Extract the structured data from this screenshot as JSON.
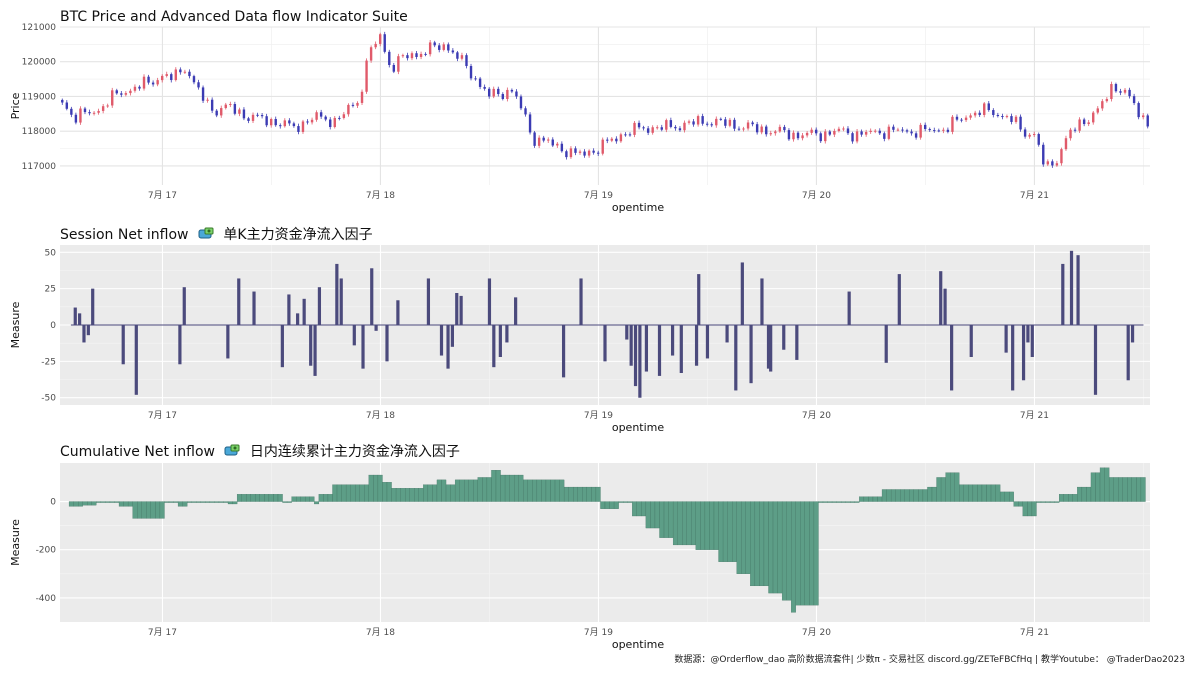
{
  "chart_data": [
    {
      "id": "price",
      "type": "candlestick",
      "title": "BTC Price and Advanced Data flow Indicator Suite",
      "xlabel": "opentime",
      "ylabel": "Price",
      "x_ticks": [
        "7月 17",
        "7月 18",
        "7月 19",
        "7月 20",
        "7月 21"
      ],
      "x_tick_days": [
        1,
        2,
        3,
        4,
        5
      ],
      "xlim_days": [
        0.53,
        5.53
      ],
      "y_ticks": [
        117000,
        118000,
        119000,
        120000,
        121000
      ],
      "ylim": [
        116450,
        121000
      ],
      "grid": true,
      "up_color": "#e05a6a",
      "down_color": "#3b3bb3",
      "path_anchors_day_price": [
        [
          0.53,
          118900
        ],
        [
          0.6,
          118400
        ],
        [
          0.7,
          118600
        ],
        [
          0.8,
          119100
        ],
        [
          0.9,
          119300
        ],
        [
          1.0,
          119600
        ],
        [
          1.05,
          119500
        ],
        [
          1.1,
          119900
        ],
        [
          1.15,
          119300
        ],
        [
          1.2,
          118800
        ],
        [
          1.25,
          118600
        ],
        [
          1.3,
          118700
        ],
        [
          1.4,
          118400
        ],
        [
          1.5,
          118300
        ],
        [
          1.6,
          118100
        ],
        [
          1.7,
          118400
        ],
        [
          1.8,
          118300
        ],
        [
          1.9,
          118900
        ],
        [
          1.95,
          120300
        ],
        [
          2.0,
          120700
        ],
        [
          2.05,
          119800
        ],
        [
          2.1,
          120100
        ],
        [
          2.2,
          120300
        ],
        [
          2.3,
          120500
        ],
        [
          2.4,
          119800
        ],
        [
          2.5,
          119000
        ],
        [
          2.6,
          119200
        ],
        [
          2.65,
          118600
        ],
        [
          2.7,
          117800
        ],
        [
          2.8,
          117600
        ],
        [
          2.9,
          117300
        ],
        [
          3.0,
          117500
        ],
        [
          3.05,
          117700
        ],
        [
          3.1,
          117900
        ],
        [
          3.2,
          118100
        ],
        [
          3.3,
          118100
        ],
        [
          3.4,
          118200
        ],
        [
          3.5,
          118300
        ],
        [
          3.6,
          118200
        ],
        [
          3.7,
          118100
        ],
        [
          3.8,
          118000
        ],
        [
          3.9,
          117900
        ],
        [
          4.0,
          117900
        ],
        [
          4.1,
          118000
        ],
        [
          4.2,
          117900
        ],
        [
          4.3,
          118000
        ],
        [
          4.4,
          118000
        ],
        [
          4.5,
          118000
        ],
        [
          4.6,
          118100
        ],
        [
          4.7,
          118500
        ],
        [
          4.8,
          118600
        ],
        [
          4.9,
          118300
        ],
        [
          4.95,
          118000
        ],
        [
          5.0,
          117900
        ],
        [
          5.05,
          116900
        ],
        [
          5.1,
          117200
        ],
        [
          5.15,
          117800
        ],
        [
          5.2,
          118200
        ],
        [
          5.3,
          118600
        ],
        [
          5.35,
          119300
        ],
        [
          5.4,
          119200
        ],
        [
          5.45,
          118800
        ],
        [
          5.5,
          118400
        ],
        [
          5.53,
          118100
        ]
      ],
      "candle_count": 240
    },
    {
      "id": "session",
      "type": "bar",
      "title": "Session Net inflow",
      "title_cn": "单K主力资金净流入因子",
      "xlabel": "opentime",
      "ylabel": "Measure",
      "x_ticks": [
        "7月 17",
        "7月 18",
        "7月 19",
        "7月 20",
        "7月 21"
      ],
      "x_tick_days": [
        1,
        2,
        3,
        4,
        5
      ],
      "xlim_days": [
        0.53,
        5.53
      ],
      "y_ticks": [
        -50,
        -25,
        0,
        25,
        50
      ],
      "ylim": [
        -55,
        55
      ],
      "bar_color": "#4b4a7c",
      "bars_day_value": [
        [
          0.6,
          12
        ],
        [
          0.62,
          8
        ],
        [
          0.64,
          -12
        ],
        [
          0.66,
          -7
        ],
        [
          0.68,
          25
        ],
        [
          0.82,
          -27
        ],
        [
          0.88,
          -48
        ],
        [
          1.08,
          -27
        ],
        [
          1.1,
          26
        ],
        [
          1.3,
          -23
        ],
        [
          1.35,
          32
        ],
        [
          1.42,
          23
        ],
        [
          1.55,
          -29
        ],
        [
          1.58,
          21
        ],
        [
          1.62,
          8
        ],
        [
          1.65,
          18
        ],
        [
          1.68,
          -28
        ],
        [
          1.7,
          -35
        ],
        [
          1.72,
          26
        ],
        [
          1.8,
          42
        ],
        [
          1.82,
          32
        ],
        [
          1.88,
          -14
        ],
        [
          1.92,
          -30
        ],
        [
          1.96,
          39
        ],
        [
          1.98,
          -4
        ],
        [
          2.03,
          -25
        ],
        [
          2.08,
          17
        ],
        [
          2.22,
          32
        ],
        [
          2.28,
          -21
        ],
        [
          2.31,
          -30
        ],
        [
          2.33,
          -15
        ],
        [
          2.35,
          22
        ],
        [
          2.37,
          20
        ],
        [
          2.5,
          32
        ],
        [
          2.52,
          -29
        ],
        [
          2.55,
          -22
        ],
        [
          2.58,
          -12
        ],
        [
          2.62,
          19
        ],
        [
          2.84,
          -36
        ],
        [
          2.92,
          32
        ],
        [
          3.03,
          -25
        ],
        [
          3.13,
          -10
        ],
        [
          3.15,
          -28
        ],
        [
          3.17,
          -42
        ],
        [
          3.19,
          -50
        ],
        [
          3.22,
          -32
        ],
        [
          3.28,
          -35
        ],
        [
          3.34,
          -21
        ],
        [
          3.38,
          -33
        ],
        [
          3.45,
          -28
        ],
        [
          3.46,
          35
        ],
        [
          3.5,
          -23
        ],
        [
          3.59,
          -12
        ],
        [
          3.63,
          -45
        ],
        [
          3.66,
          43
        ],
        [
          3.7,
          -40
        ],
        [
          3.75,
          32
        ],
        [
          3.78,
          -30
        ],
        [
          3.79,
          -32
        ],
        [
          3.85,
          -17
        ],
        [
          3.91,
          -24
        ],
        [
          4.15,
          23
        ],
        [
          4.32,
          -26
        ],
        [
          4.38,
          35
        ],
        [
          4.57,
          37
        ],
        [
          4.59,
          25
        ],
        [
          4.62,
          -45
        ],
        [
          4.71,
          -22
        ],
        [
          4.87,
          -19
        ],
        [
          4.9,
          -45
        ],
        [
          4.95,
          -38
        ],
        [
          4.97,
          -12
        ],
        [
          4.99,
          -22
        ],
        [
          5.13,
          42
        ],
        [
          5.17,
          51
        ],
        [
          5.2,
          48
        ],
        [
          5.28,
          -48
        ],
        [
          5.43,
          -38
        ],
        [
          5.45,
          -12
        ]
      ]
    },
    {
      "id": "cumulative",
      "type": "bar",
      "title": "Cumulative Net inflow",
      "title_cn": "日内连续累计主力资金净流入因子",
      "xlabel": "opentime",
      "ylabel": "Measure",
      "x_ticks": [
        "7月 17",
        "7月 18",
        "7月 19",
        "7月 20",
        "7月 21"
      ],
      "x_tick_days": [
        1,
        2,
        3,
        4,
        5
      ],
      "xlim_days": [
        0.53,
        5.53
      ],
      "y_ticks": [
        -400,
        -200,
        0
      ],
      "ylim": [
        -500,
        160
      ],
      "bar_color": "#5d9e87",
      "bar_edge": "#3d6f5f",
      "step_anchors_day_value": [
        [
          0.53,
          -20
        ],
        [
          0.6,
          -20
        ],
        [
          0.64,
          -15
        ],
        [
          0.7,
          0
        ],
        [
          0.8,
          -20
        ],
        [
          0.87,
          -70
        ],
        [
          1.0,
          0
        ],
        [
          1.08,
          -20
        ],
        [
          1.12,
          0
        ],
        [
          1.3,
          -10
        ],
        [
          1.34,
          30
        ],
        [
          1.55,
          0
        ],
        [
          1.6,
          20
        ],
        [
          1.7,
          -10
        ],
        [
          1.72,
          30
        ],
        [
          1.78,
          70
        ],
        [
          1.95,
          110
        ],
        [
          2.0,
          80
        ],
        [
          2.05,
          55
        ],
        [
          2.2,
          70
        ],
        [
          2.25,
          90
        ],
        [
          2.3,
          70
        ],
        [
          2.35,
          90
        ],
        [
          2.45,
          100
        ],
        [
          2.5,
          130
        ],
        [
          2.55,
          110
        ],
        [
          2.65,
          90
        ],
        [
          2.85,
          60
        ],
        [
          3.0,
          -30
        ],
        [
          3.1,
          0
        ],
        [
          3.15,
          -60
        ],
        [
          3.22,
          -110
        ],
        [
          3.28,
          -150
        ],
        [
          3.35,
          -180
        ],
        [
          3.45,
          -200
        ],
        [
          3.55,
          -250
        ],
        [
          3.63,
          -300
        ],
        [
          3.7,
          -350
        ],
        [
          3.78,
          -380
        ],
        [
          3.85,
          -410
        ],
        [
          3.88,
          -460
        ],
        [
          3.91,
          -430
        ],
        [
          3.99,
          -430
        ],
        [
          4.0,
          0
        ],
        [
          4.15,
          0
        ],
        [
          4.2,
          20
        ],
        [
          4.3,
          50
        ],
        [
          4.5,
          60
        ],
        [
          4.55,
          100
        ],
        [
          4.6,
          120
        ],
        [
          4.65,
          70
        ],
        [
          4.85,
          40
        ],
        [
          4.9,
          -20
        ],
        [
          4.95,
          -60
        ],
        [
          5.0,
          0
        ],
        [
          5.12,
          30
        ],
        [
          5.2,
          60
        ],
        [
          5.25,
          120
        ],
        [
          5.3,
          140
        ],
        [
          5.35,
          100
        ],
        [
          5.5,
          50
        ],
        [
          5.53,
          50
        ]
      ]
    }
  ],
  "footer": "数据源：@Orderflow_dao 高阶数据流套件| 少数π - 交易社区 discord.gg/ZETeFBCfHq | 教学Youtube： @TraderDao2023"
}
